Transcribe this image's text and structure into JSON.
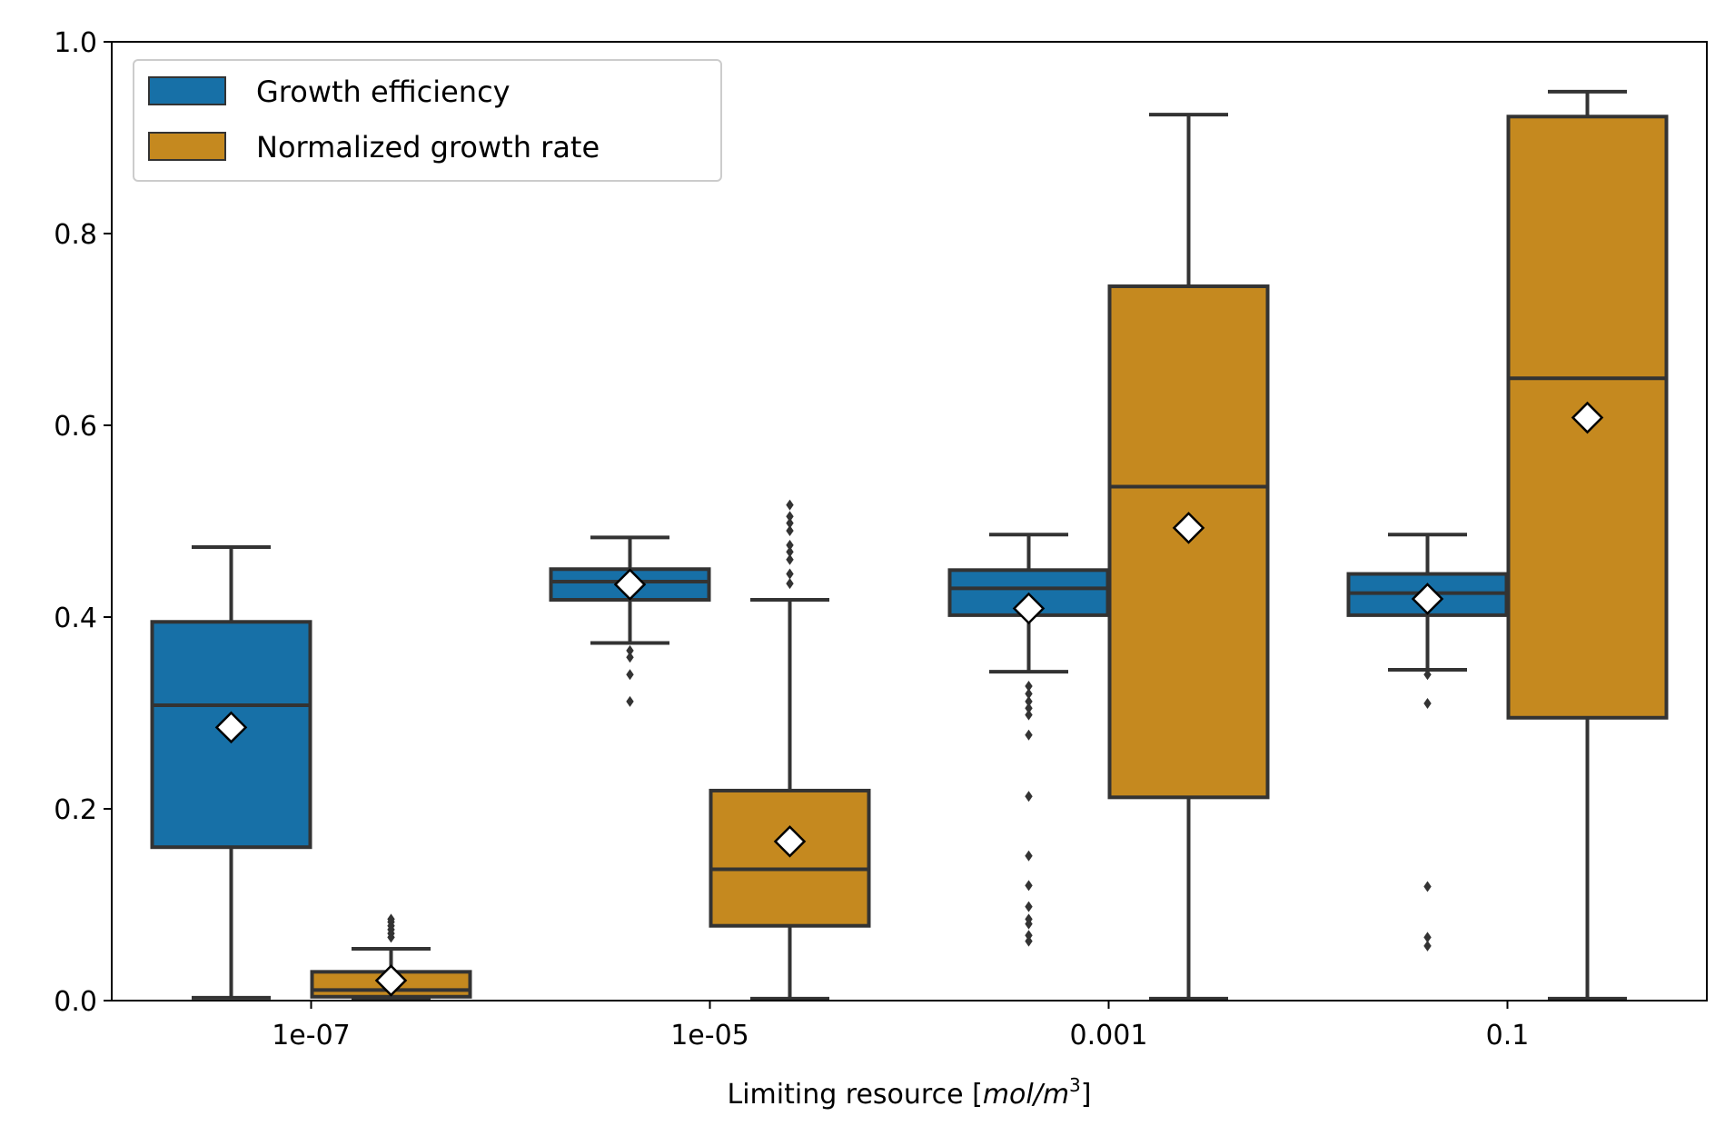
{
  "chart_data": {
    "type": "box",
    "categories": [
      "1e-07",
      "1e-05",
      "0.001",
      "0.1"
    ],
    "xlabel": {
      "prefix": "Limiting resource [",
      "unit_var": "mol",
      "unit_sep": "/",
      "unit_var2": "m",
      "sup": "3",
      "suffix": "]"
    },
    "ylabel": "",
    "ylim": [
      0.0,
      1.0
    ],
    "yticks": [
      0.0,
      0.2,
      0.4,
      0.6,
      0.8,
      1.0
    ],
    "ytick_labels": [
      "0.0",
      "0.2",
      "0.4",
      "0.6",
      "0.8",
      "1.0"
    ],
    "grid": false,
    "legend_position": "top-left",
    "series": [
      {
        "name": "Growth efficiency",
        "color": "#1770a7",
        "boxes": [
          {
            "whislo": 0.003,
            "q1": 0.16,
            "median": 0.308,
            "q3": 0.395,
            "whishi": 0.473,
            "mean": 0.285,
            "fliers": []
          },
          {
            "whislo": 0.373,
            "q1": 0.418,
            "median": 0.437,
            "q3": 0.45,
            "whishi": 0.483,
            "mean": 0.434,
            "fliers": [
              0.312,
              0.34,
              0.358,
              0.365
            ]
          },
          {
            "whislo": 0.343,
            "q1": 0.402,
            "median": 0.43,
            "q3": 0.449,
            "whishi": 0.486,
            "mean": 0.409,
            "fliers": [
              0.062,
              0.068,
              0.08,
              0.085,
              0.098,
              0.12,
              0.151,
              0.213,
              0.277,
              0.298,
              0.305,
              0.312,
              0.32,
              0.328
            ]
          },
          {
            "whislo": 0.345,
            "q1": 0.402,
            "median": 0.425,
            "q3": 0.445,
            "whishi": 0.486,
            "mean": 0.419,
            "fliers": [
              0.057,
              0.066,
              0.119,
              0.31,
              0.34
            ]
          }
        ]
      },
      {
        "name": "Normalized growth rate",
        "color": "#c5891f",
        "boxes": [
          {
            "whislo": 0.002,
            "q1": 0.004,
            "median": 0.011,
            "q3": 0.03,
            "whishi": 0.054,
            "mean": 0.021,
            "fliers": [
              0.066,
              0.07,
              0.074,
              0.078,
              0.082,
              0.085
            ]
          },
          {
            "whislo": 0.002,
            "q1": 0.078,
            "median": 0.137,
            "q3": 0.219,
            "whishi": 0.418,
            "mean": 0.166,
            "fliers": [
              0.435,
              0.445,
              0.46,
              0.468,
              0.475,
              0.49,
              0.498,
              0.505,
              0.517
            ]
          },
          {
            "whislo": 0.002,
            "q1": 0.212,
            "median": 0.536,
            "q3": 0.745,
            "whishi": 0.924,
            "mean": 0.493,
            "fliers": []
          },
          {
            "whislo": 0.002,
            "q1": 0.295,
            "median": 0.649,
            "q3": 0.922,
            "whishi": 0.948,
            "mean": 0.608,
            "fliers": []
          }
        ]
      }
    ]
  }
}
